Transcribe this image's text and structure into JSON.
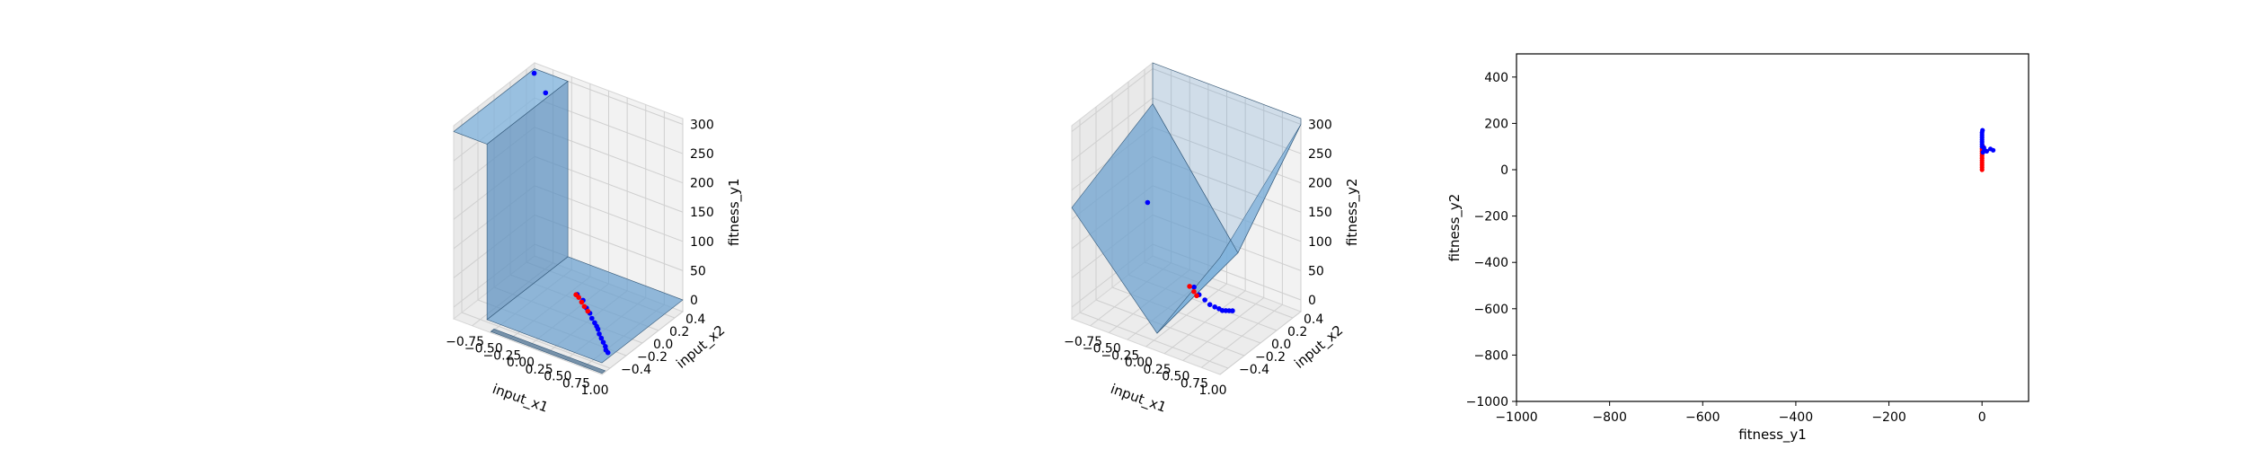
{
  "chart_data": [
    {
      "type": "scatter",
      "projection": "3d",
      "xlabel": "input_x1",
      "ylabel": "input_x2",
      "zlabel": "fitness_y1",
      "xticks": [
        "−0.75",
        "−0.50",
        "−0.25",
        "0.00",
        "0.25",
        "0.50",
        "0.75",
        "1.00"
      ],
      "yticks": [
        "−0.4",
        "−0.2",
        "0.0",
        "0.2",
        "0.4"
      ],
      "zticks": [
        "0",
        "50",
        "100",
        "150",
        "200",
        "250",
        "300"
      ],
      "surface": "translucent blue step surface",
      "series": [
        {
          "color": "#0000ff",
          "points": [
            [
              -0.95,
              0.45,
              300
            ],
            [
              -0.72,
              0.38,
              285
            ],
            [
              0.1,
              0.02,
              18
            ],
            [
              0.2,
              0.0,
              15
            ],
            [
              0.3,
              -0.05,
              12
            ],
            [
              0.38,
              -0.08,
              10
            ],
            [
              0.45,
              -0.12,
              9
            ],
            [
              0.52,
              -0.15,
              8
            ],
            [
              0.58,
              -0.18,
              8
            ],
            [
              0.62,
              -0.2,
              7
            ],
            [
              0.68,
              -0.24,
              6
            ],
            [
              0.74,
              -0.27,
              5
            ],
            [
              0.8,
              -0.3,
              4
            ],
            [
              0.86,
              -0.33,
              3
            ],
            [
              0.9,
              -0.36,
              2
            ],
            [
              0.95,
              -0.38,
              2
            ]
          ]
        },
        {
          "color": "#ff0000",
          "points": [
            [
              0.05,
              0.05,
              12
            ],
            [
              0.12,
              0.02,
              14
            ],
            [
              0.18,
              0.0,
              11
            ],
            [
              0.25,
              -0.03,
              10
            ],
            [
              0.33,
              -0.06,
              9
            ]
          ]
        }
      ]
    },
    {
      "type": "scatter",
      "projection": "3d",
      "xlabel": "input_x1",
      "ylabel": "input_x2",
      "zlabel": "fitness_y2",
      "xticks": [
        "−0.75",
        "−0.50",
        "−0.25",
        "0.00",
        "0.25",
        "0.50",
        "0.75",
        "1.00"
      ],
      "yticks": [
        "−0.4",
        "−0.2",
        "0.0",
        "0.2",
        "0.4"
      ],
      "zticks": [
        "0",
        "50",
        "100",
        "150",
        "200",
        "250",
        "300"
      ],
      "surface": "translucent blue V-shaped surface",
      "series": [
        {
          "color": "#0000ff",
          "points": [
            [
              -0.85,
              0.3,
              100
            ],
            [
              0.05,
              0.05,
              25
            ],
            [
              0.15,
              0.02,
              20
            ],
            [
              0.25,
              0.0,
              18
            ],
            [
              0.35,
              -0.03,
              18
            ],
            [
              0.45,
              -0.06,
              22
            ],
            [
              0.55,
              -0.1,
              28
            ],
            [
              0.65,
              -0.15,
              35
            ],
            [
              0.75,
              -0.2,
              45
            ],
            [
              0.85,
              -0.25,
              55
            ],
            [
              0.95,
              -0.3,
              65
            ]
          ]
        },
        {
          "color": "#ff0000",
          "points": [
            [
              0.0,
              0.04,
              25
            ],
            [
              0.08,
              0.02,
              22
            ],
            [
              0.14,
              0.0,
              20
            ]
          ]
        }
      ]
    },
    {
      "type": "scatter",
      "xlabel": "fitness_y1",
      "ylabel": "fitness_y2",
      "xlim": [
        -1000,
        100
      ],
      "ylim": [
        -1000,
        500
      ],
      "xticks": [
        "−1000",
        "−800",
        "−600",
        "−400",
        "−200",
        "0"
      ],
      "yticks": [
        "−1000",
        "−800",
        "−600",
        "−400",
        "−200",
        "0",
        "200",
        "400"
      ],
      "grid": false,
      "series": [
        {
          "color": "#ff0000",
          "points": [
            [
              0,
              0
            ],
            [
              0,
              10
            ],
            [
              0,
              20
            ],
            [
              0,
              30
            ],
            [
              0,
              40
            ],
            [
              0,
              50
            ],
            [
              0,
              60
            ],
            [
              0,
              70
            ],
            [
              0,
              80
            ],
            [
              0,
              90
            ],
            [
              1,
              95
            ],
            [
              2,
              100
            ],
            [
              3,
              85
            ]
          ]
        },
        {
          "color": "#0000ff",
          "points": [
            [
              0,
              100
            ],
            [
              0,
              110
            ],
            [
              0,
              120
            ],
            [
              0,
              130
            ],
            [
              0,
              140
            ],
            [
              0,
              150
            ],
            [
              0,
              160
            ],
            [
              1,
              170
            ],
            [
              5,
              85
            ],
            [
              10,
              80
            ],
            [
              18,
              90
            ],
            [
              24,
              84
            ],
            [
              2,
              75
            ],
            [
              4,
              95
            ]
          ]
        }
      ]
    }
  ]
}
